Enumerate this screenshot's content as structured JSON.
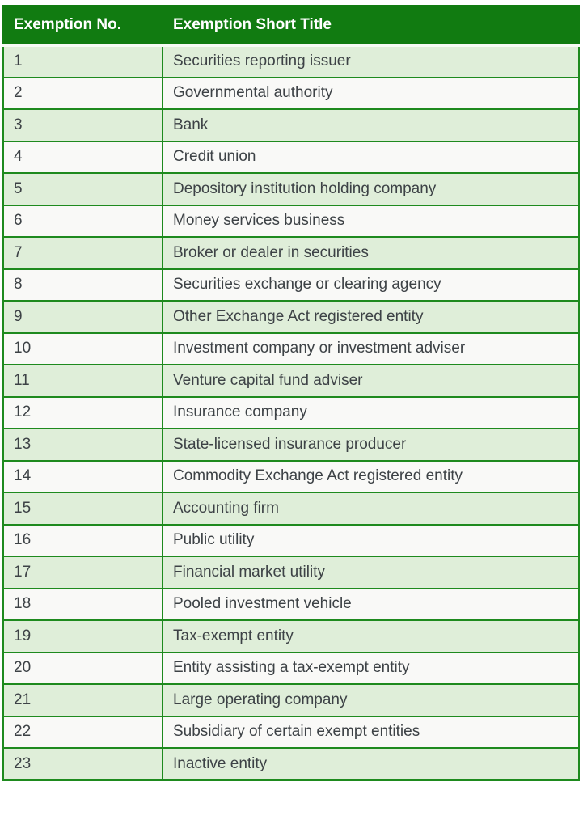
{
  "colors": {
    "header_bg": "#117b11",
    "header_text": "#ffffff",
    "row_odd_bg": "#dfeed9",
    "row_even_bg": "#f9f9f7",
    "border": "#1e8a1e",
    "text": "#3d4246",
    "page_bg": "#ffffff"
  },
  "table": {
    "columns": [
      {
        "label": "Exemption No."
      },
      {
        "label": "Exemption Short Title"
      }
    ],
    "rows": [
      {
        "no": "1",
        "title": "Securities reporting issuer"
      },
      {
        "no": "2",
        "title": "Governmental authority"
      },
      {
        "no": "3",
        "title": "Bank"
      },
      {
        "no": "4",
        "title": "Credit union"
      },
      {
        "no": "5",
        "title": "Depository institution holding company"
      },
      {
        "no": "6",
        "title": "Money services business"
      },
      {
        "no": "7",
        "title": "Broker or dealer in securities"
      },
      {
        "no": "8",
        "title": "Securities exchange or clearing agency"
      },
      {
        "no": "9",
        "title": "Other Exchange Act registered entity"
      },
      {
        "no": "10",
        "title": "Investment company or investment adviser"
      },
      {
        "no": "11",
        "title": "Venture capital fund adviser"
      },
      {
        "no": "12",
        "title": "Insurance company"
      },
      {
        "no": "13",
        "title": "State-licensed insurance producer"
      },
      {
        "no": "14",
        "title": "Commodity Exchange Act registered entity"
      },
      {
        "no": "15",
        "title": "Accounting firm"
      },
      {
        "no": "16",
        "title": "Public utility"
      },
      {
        "no": "17",
        "title": "Financial market utility"
      },
      {
        "no": "18",
        "title": "Pooled investment vehicle"
      },
      {
        "no": "19",
        "title": "Tax-exempt entity"
      },
      {
        "no": "20",
        "title": "Entity assisting a tax-exempt entity"
      },
      {
        "no": "21",
        "title": "Large operating company"
      },
      {
        "no": "22",
        "title": "Subsidiary of certain exempt entities"
      },
      {
        "no": "23",
        "title": "Inactive entity"
      }
    ]
  }
}
